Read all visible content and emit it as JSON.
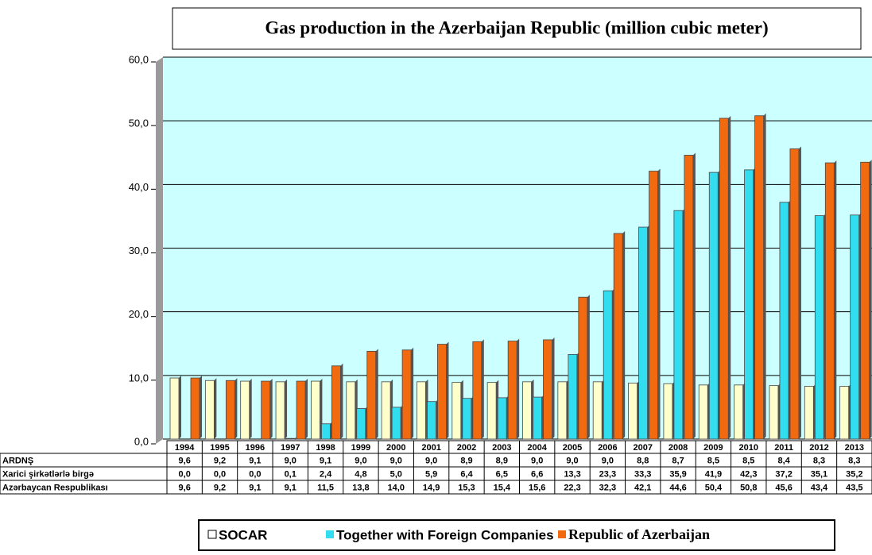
{
  "chart_data": {
    "type": "bar",
    "title": "Gas production in the Azerbaijan Republic (million cubic meter)",
    "categories": [
      "1994",
      "1995",
      "1996",
      "1997",
      "1998",
      "1999",
      "2000",
      "2001",
      "2002",
      "2003",
      "2004",
      "2005",
      "2006",
      "2007",
      "2008",
      "2009",
      "2010",
      "2011",
      "2012",
      "2013"
    ],
    "ylim": [
      0,
      60
    ],
    "yticks": [
      {
        "value": 0,
        "label": "0,0"
      },
      {
        "value": 10,
        "label": "10,0"
      },
      {
        "value": 20,
        "label": "20,0"
      },
      {
        "value": 30,
        "label": "30,0"
      },
      {
        "value": 40,
        "label": "40,0"
      },
      {
        "value": 50,
        "label": "50,0"
      },
      {
        "value": 60,
        "label": "60,0"
      }
    ],
    "grid": true,
    "series": [
      {
        "name": "SOCAR",
        "table_label": "ARDNŞ",
        "color": "#ffffcc",
        "values": [
          9.6,
          9.2,
          9.1,
          9.0,
          9.1,
          9.0,
          9.0,
          9.0,
          8.9,
          8.9,
          9.0,
          9.0,
          9.0,
          8.8,
          8.7,
          8.5,
          8.5,
          8.4,
          8.3,
          8.3
        ],
        "value_labels": [
          "9,6",
          "9,2",
          "9,1",
          "9,0",
          "9,1",
          "9,0",
          "9,0",
          "9,0",
          "8,9",
          "8,9",
          "9,0",
          "9,0",
          "9,0",
          "8,8",
          "8,7",
          "8,5",
          "8,5",
          "8,4",
          "8,3",
          "8,3"
        ]
      },
      {
        "name": "Together with Foreign Companies",
        "table_label": "Xarici şirkətlərlə birgə",
        "color": "#33ddf0",
        "values": [
          0.0,
          0.0,
          0.0,
          0.1,
          2.4,
          4.8,
          5.0,
          5.9,
          6.4,
          6.5,
          6.6,
          13.3,
          23.3,
          33.3,
          35.9,
          41.9,
          42.3,
          37.2,
          35.1,
          35.2
        ],
        "value_labels": [
          "0,0",
          "0,0",
          "0,0",
          "0,1",
          "2,4",
          "4,8",
          "5,0",
          "5,9",
          "6,4",
          "6,5",
          "6,6",
          "13,3",
          "23,3",
          "33,3",
          "35,9",
          "41,9",
          "42,3",
          "37,2",
          "35,1",
          "35,2"
        ]
      },
      {
        "name": "Republic of Azerbaijan",
        "table_label": "Azərbaycan Respublikası",
        "color": "#f26a10",
        "values": [
          9.6,
          9.2,
          9.1,
          9.1,
          11.5,
          13.8,
          14.0,
          14.9,
          15.3,
          15.4,
          15.6,
          22.3,
          32.3,
          42.1,
          44.6,
          50.4,
          50.8,
          45.6,
          43.4,
          43.5
        ],
        "value_labels": [
          "9,6",
          "9,2",
          "9,1",
          "9,1",
          "11,5",
          "13,8",
          "14,0",
          "14,9",
          "15,3",
          "15,4",
          "15,6",
          "22,3",
          "32,3",
          "42,1",
          "44,6",
          "50,4",
          "50,8",
          "45,6",
          "43,4",
          "43,5"
        ]
      }
    ]
  }
}
